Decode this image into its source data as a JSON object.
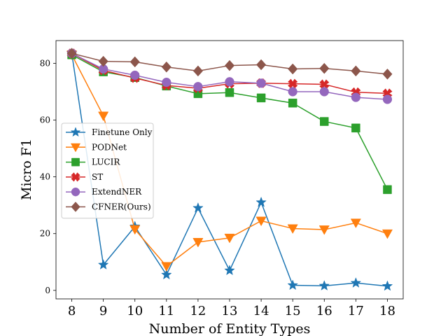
{
  "chart_data": {
    "type": "line",
    "title": "",
    "xlabel": "Number of Entity Types",
    "ylabel": "Micro F1",
    "x": [
      8,
      9,
      10,
      11,
      12,
      13,
      14,
      15,
      16,
      17,
      18
    ],
    "xlim": [
      7.5,
      18.5
    ],
    "ylim": [
      -3,
      88
    ],
    "yticks": [
      0,
      20,
      40,
      60,
      80
    ],
    "legend_position": "center-left",
    "series": [
      {
        "name": "Finetune Only",
        "color": "#1f77b4",
        "marker": "star",
        "values": [
          83.5,
          9,
          22.5,
          5.5,
          29,
          7,
          31,
          1.8,
          1.6,
          2.6,
          1.5
        ]
      },
      {
        "name": "PODNet",
        "color": "#ff7f0e",
        "marker": "triangle-down",
        "values": [
          83,
          61.5,
          21.5,
          8.5,
          17,
          18.5,
          24.5,
          21.8,
          21.4,
          23.8,
          20
        ]
      },
      {
        "name": "LUCIR",
        "color": "#2ca02c",
        "marker": "square",
        "values": [
          83,
          77,
          75,
          72,
          69.3,
          69.7,
          67.8,
          66,
          59.5,
          57.2,
          35.5
        ]
      },
      {
        "name": "ST",
        "color": "#d62728",
        "marker": "x-filled",
        "values": [
          83.5,
          77.5,
          74.8,
          72.2,
          71.2,
          72.8,
          73,
          72.8,
          72.6,
          69.8,
          69.4
        ]
      },
      {
        "name": "ExtendNER",
        "color": "#9467bd",
        "marker": "circle",
        "values": [
          83.5,
          78,
          75.8,
          73.3,
          71.8,
          73.5,
          73,
          70,
          70,
          68,
          67.3
        ]
      },
      {
        "name": "CFNER(Ours)",
        "color": "#8c564b",
        "marker": "diamond",
        "values": [
          83.5,
          80.7,
          80.5,
          78.7,
          77.3,
          79.2,
          79.5,
          78,
          78.2,
          77.3,
          76.2
        ]
      }
    ]
  }
}
